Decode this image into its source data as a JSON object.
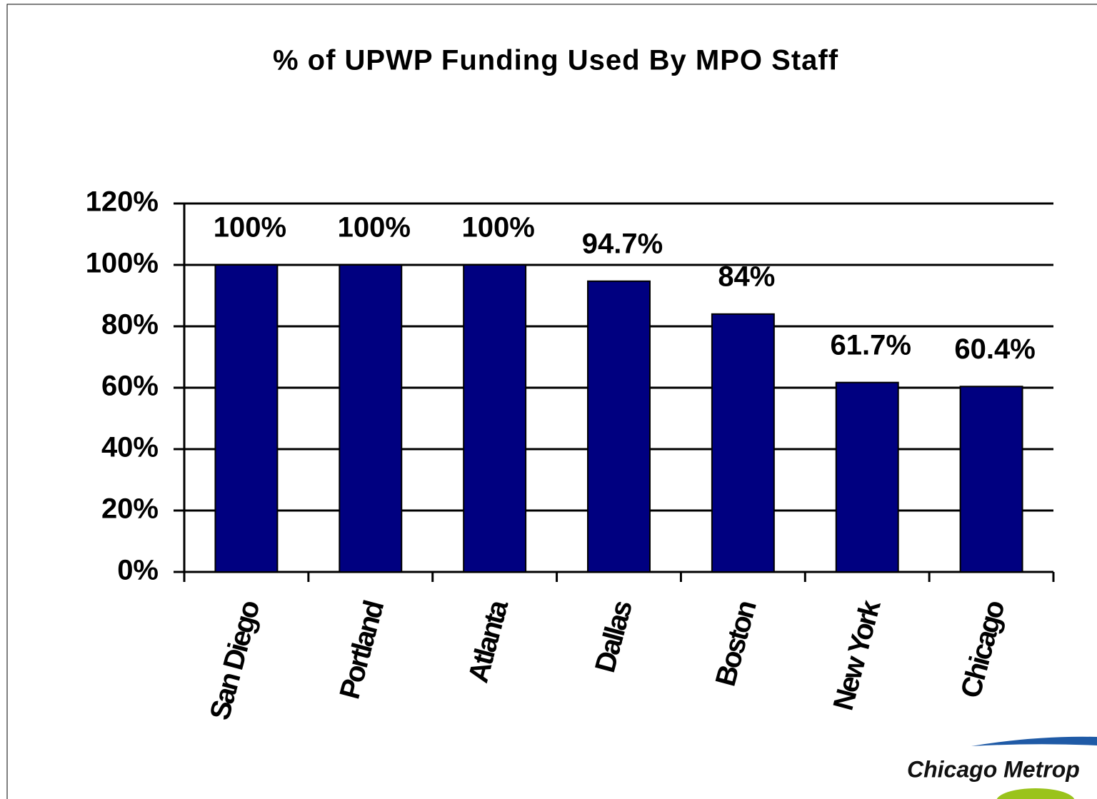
{
  "chart_data": {
    "type": "bar",
    "title": "% of UPWP Funding Used By MPO Staff",
    "categories": [
      "San Diego",
      "Portland",
      "Atlanta",
      "Dallas",
      "Boston",
      "New York",
      "Chicago"
    ],
    "values": [
      100,
      100,
      100,
      94.7,
      84,
      61.7,
      60.4
    ],
    "value_labels": [
      "100%",
      "100%",
      "100%",
      "94.7%",
      "84%",
      "61.7%",
      "60.4%"
    ],
    "color": "#000080",
    "ylim": [
      0,
      120
    ],
    "yticks": [
      {
        "value": 0,
        "label": "0%"
      },
      {
        "value": 20,
        "label": "20%"
      },
      {
        "value": 40,
        "label": "40%"
      },
      {
        "value": 60,
        "label": "60%"
      },
      {
        "value": 80,
        "label": "80%"
      },
      {
        "value": 100,
        "label": "100%"
      },
      {
        "value": 120,
        "label": "120%"
      }
    ],
    "grid": true
  },
  "logo": "Chicago Metrop"
}
